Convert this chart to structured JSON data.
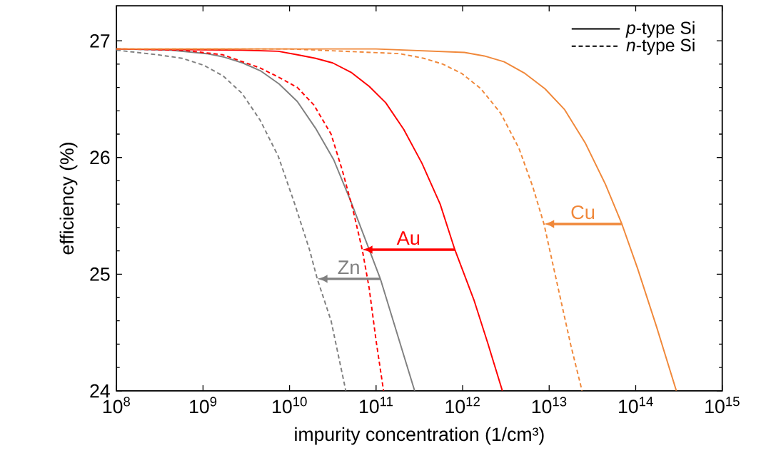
{
  "chart_data": {
    "type": "line",
    "xlabel": "impurity concentration (1/cm³)",
    "ylabel": "efficiency (%)",
    "log": "x",
    "legend": "top right",
    "xlim": [
      100000000.0,
      1000000000000000.0
    ],
    "ylim": [
      24,
      27.3
    ],
    "xticks": [
      {
        "value": 100000000.0,
        "label": "10$^{8}$"
      },
      {
        "value": 1000000000.0,
        "label": "10$^{9}$"
      },
      {
        "value": 10000000000.0,
        "label": "10$^{10}$"
      },
      {
        "value": 100000000000.0,
        "label": "10$^{11}$"
      },
      {
        "value": 1000000000000.0,
        "label": "10$^{12}$"
      },
      {
        "value": 10000000000000.0,
        "label": "10$^{13}$"
      },
      {
        "value": 100000000000000.0,
        "label": "10$^{14}$"
      },
      {
        "value": 1000000000000000.0,
        "label": "10$^{15}$"
      }
    ],
    "yticks": [
      24,
      25,
      26,
      27
    ],
    "series": [
      {
        "name": "*p*-type Si",
        "color": "#000000",
        "line_style": "solid"
      },
      {
        "name": "*n*-type Si",
        "color": "#000000",
        "line_style": "dashed"
      },
      {
        "color": "#808080",
        "line_style": "solid",
        "x": [
          100000000.0,
          420000000.0,
          1100000000.0,
          1760000000.0,
          2880000000.0,
          4680000000.0,
          7590000000.0,
          12300000000.0,
          20000000000.0,
          32400000000.0,
          51300000000.0,
          112000000000.0,
          279000000000.0
        ],
        "values": [
          26.93,
          26.92,
          26.89,
          26.86,
          26.81,
          26.74,
          26.63,
          26.48,
          26.25,
          25.98,
          25.62,
          24.96,
          24.0
        ]
      },
      {
        "color": "#808080",
        "line_style": "dashed",
        "x": [
          100000000.0,
          302000000.0,
          575000000.0,
          1020000000.0,
          1700000000.0,
          2820000000.0,
          4570000000.0,
          7410000000.0,
          11500000000.0,
          17000000000.0,
          20900000000.0,
          30200000000.0,
          44700000000.0
        ],
        "values": [
          26.92,
          26.88,
          26.85,
          26.79,
          26.7,
          26.55,
          26.32,
          26.01,
          25.6,
          25.21,
          24.96,
          24.6,
          24.0
        ]
      },
      {
        "color": "#ff0000",
        "line_style": "solid",
        "x": [
          100000000.0,
          2820000000.0,
          7410000000.0,
          12300000000.0,
          20000000000.0,
          31600000000.0,
          51300000000.0,
          83200000000.0,
          129000000000.0,
          209000000000.0,
          339000000000.0,
          550000000000.0,
          813000000000.0,
          1350000000000.0,
          1950000000000.0,
          2880000000000.0
        ],
        "values": [
          26.93,
          26.92,
          26.91,
          26.88,
          26.85,
          26.81,
          26.73,
          26.61,
          26.47,
          26.24,
          25.95,
          25.6,
          25.21,
          24.78,
          24.41,
          24.0
        ]
      },
      {
        "color": "#ff0000",
        "line_style": "dashed",
        "x": [
          100000000.0,
          575000000.0,
          1700000000.0,
          4470000000.0,
          7410000000.0,
          12300000000.0,
          19100000000.0,
          30200000000.0,
          40700000000.0,
          53700000000.0,
          69200000000.0,
          83200000000.0,
          100000000000.0,
          122000000000.0
        ],
        "values": [
          26.93,
          26.92,
          26.88,
          26.77,
          26.69,
          26.6,
          26.45,
          26.2,
          25.89,
          25.56,
          25.21,
          24.88,
          24.43,
          24.0
        ]
      },
      {
        "color": "#f0883a",
        "line_style": "solid",
        "x": [
          100000000.0,
          100000000000.0,
          1050000000000.0,
          1780000000000.0,
          3020000000000.0,
          5250000000000.0,
          8910000000000.0,
          15100000000000.0,
          26300000000000.0,
          44700000000000.0,
          69200000000000.0,
          105000000000000.0,
          174000000000000.0,
          295000000000000.0
        ],
        "values": [
          26.93,
          26.93,
          26.9,
          26.87,
          26.82,
          26.72,
          26.59,
          26.41,
          26.12,
          25.77,
          25.43,
          25.05,
          24.55,
          24.0
        ]
      },
      {
        "color": "#f0883a",
        "line_style": "dashed",
        "x": [
          100000000.0,
          10000000000.0,
          186000000000.0,
          355000000000.0,
          589000000000.0,
          977000000000.0,
          1620000000000.0,
          2750000000000.0,
          4470000000000.0,
          6460000000000.0,
          8710000000000.0,
          10700000000000.0,
          13800000000000.0,
          17800000000000.0,
          24000000000000.0
        ],
        "values": [
          26.93,
          26.93,
          26.89,
          26.85,
          26.8,
          26.72,
          26.59,
          26.38,
          26.08,
          25.75,
          25.43,
          25.13,
          24.76,
          24.39,
          24.0
        ]
      }
    ],
    "annotations": [
      {
        "text": "Zn",
        "x": 112000000000.0,
        "y": 24.96
      },
      {
        "text": "Au",
        "x": 813000000000.0,
        "y": 25.21
      },
      {
        "text": "Cu",
        "x": 69200000000000.0,
        "y": 25.43
      }
    ]
  }
}
